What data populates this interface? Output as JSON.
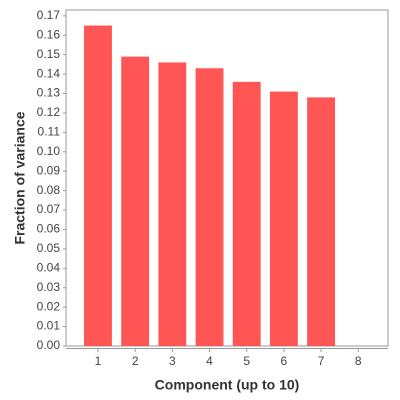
{
  "chart_data": {
    "type": "bar",
    "x": [
      1,
      2,
      3,
      4,
      5,
      6,
      7
    ],
    "values": [
      0.165,
      0.149,
      0.146,
      0.143,
      0.136,
      0.131,
      0.128
    ],
    "color": "#ff5555",
    "xlim": [
      0.14,
      8.8
    ],
    "xticks": [
      1,
      2,
      3,
      4,
      5,
      6,
      7,
      8
    ],
    "ylim": [
      0,
      0.173
    ],
    "yticks": [
      {
        "value": 0,
        "label": "0.00"
      },
      0.01,
      0.02,
      0.03,
      0.04,
      0.05,
      0.06,
      0.07,
      0.08,
      0.09,
      {
        "value": 0.1,
        "label": "0.10"
      },
      0.11,
      0.12,
      0.13,
      0.14,
      0.15,
      0.16,
      0.17
    ],
    "xlabel": "Component (up to 10)",
    "ylabel": "Fraction of variance",
    "grid": false
  }
}
